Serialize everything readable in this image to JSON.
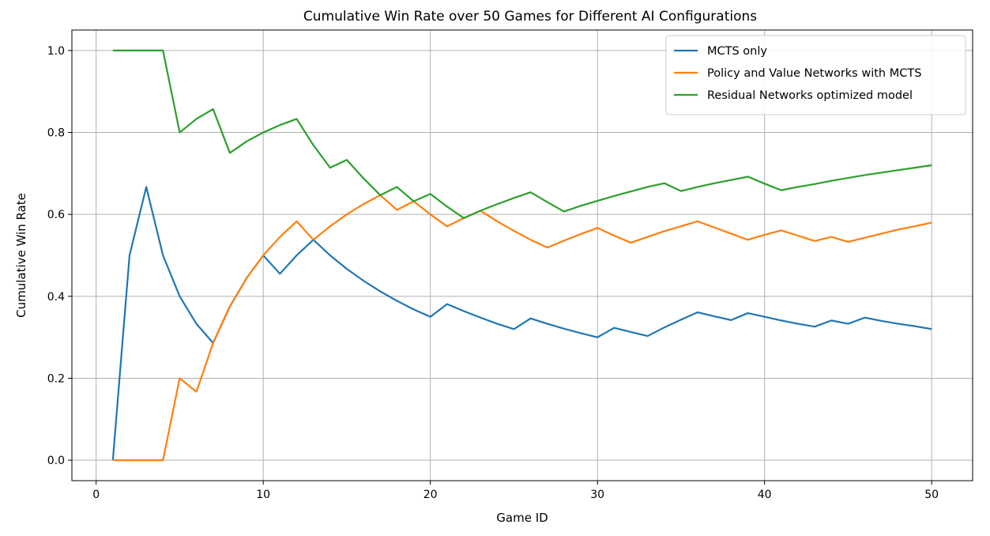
{
  "chart_data": {
    "type": "line",
    "title": "Cumulative Win Rate over 50 Games for Different AI Configurations",
    "xlabel": "Game ID",
    "ylabel": "Cumulative Win Rate",
    "xlim": [
      -1.45,
      52.45
    ],
    "ylim": [
      -0.05,
      1.05
    ],
    "xticks": [
      0,
      10,
      20,
      30,
      40,
      50
    ],
    "xtick_labels": [
      "0",
      "10",
      "20",
      "30",
      "40",
      "50"
    ],
    "yticks": [
      0.0,
      0.2,
      0.4,
      0.6,
      0.8,
      1.0
    ],
    "ytick_labels": [
      "0.0",
      "0.2",
      "0.4",
      "0.6",
      "0.8",
      "1.0"
    ],
    "grid": true,
    "legend_position": "upper right",
    "x": [
      1,
      2,
      3,
      4,
      5,
      6,
      7,
      8,
      9,
      10,
      11,
      12,
      13,
      14,
      15,
      16,
      17,
      18,
      19,
      20,
      21,
      22,
      23,
      24,
      25,
      26,
      27,
      28,
      29,
      30,
      31,
      32,
      33,
      34,
      35,
      36,
      37,
      38,
      39,
      40,
      41,
      42,
      43,
      44,
      45,
      46,
      47,
      48,
      49,
      50
    ],
    "series": [
      {
        "name": "MCTS only",
        "color": "#1f77b4",
        "values": [
          0.0,
          0.5,
          0.667,
          0.5,
          0.4,
          0.333,
          0.286,
          0.375,
          0.444,
          0.5,
          0.455,
          0.5,
          0.538,
          0.5,
          0.467,
          0.438,
          0.412,
          0.389,
          0.368,
          0.35,
          0.381,
          0.364,
          0.348,
          0.333,
          0.32,
          0.346,
          0.333,
          0.321,
          0.31,
          0.3,
          0.323,
          0.313,
          0.303,
          0.324,
          0.343,
          0.361,
          0.351,
          0.342,
          0.359,
          0.35,
          0.341,
          0.333,
          0.326,
          0.341,
          0.333,
          0.348,
          0.34,
          0.333,
          0.327,
          0.32
        ]
      },
      {
        "name": "Policy and Value Networks with MCTS",
        "color": "#ff7f0e",
        "values": [
          0.0,
          0.0,
          0.0,
          0.0,
          0.2,
          0.167,
          0.286,
          0.375,
          0.444,
          0.5,
          0.545,
          0.583,
          0.538,
          0.571,
          0.6,
          0.625,
          0.647,
          0.611,
          0.632,
          0.6,
          0.571,
          0.591,
          0.609,
          0.583,
          0.56,
          0.538,
          0.519,
          0.536,
          0.552,
          0.567,
          0.548,
          0.531,
          0.545,
          0.559,
          0.571,
          0.583,
          0.568,
          0.553,
          0.538,
          0.55,
          0.561,
          0.548,
          0.535,
          0.545,
          0.533,
          0.543,
          0.553,
          0.563,
          0.571,
          0.58
        ]
      },
      {
        "name": "Residual Networks optimized model",
        "color": "#2ca02c",
        "values": [
          1.0,
          1.0,
          1.0,
          1.0,
          0.8,
          0.833,
          0.857,
          0.75,
          0.778,
          0.8,
          0.818,
          0.833,
          0.769,
          0.714,
          0.733,
          0.688,
          0.647,
          0.667,
          0.632,
          0.65,
          0.619,
          0.591,
          0.609,
          0.625,
          0.64,
          0.654,
          0.63,
          0.607,
          0.621,
          0.633,
          0.645,
          0.656,
          0.667,
          0.676,
          0.657,
          0.667,
          0.676,
          0.684,
          0.692,
          0.675,
          0.659,
          0.667,
          0.674,
          0.682,
          0.689,
          0.696,
          0.702,
          0.708,
          0.714,
          0.72
        ]
      }
    ]
  }
}
